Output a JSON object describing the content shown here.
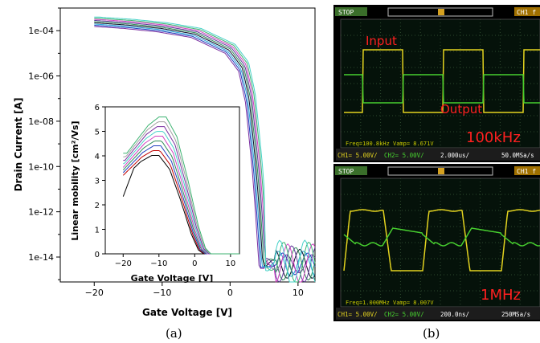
{
  "captions": {
    "a": "(a)",
    "b": "(b)"
  },
  "chart_data": [
    {
      "type": "line",
      "xlabel": "Gate Voltage [V]",
      "ylabel": "Drain Current [A]",
      "log_y": true,
      "xlim": [
        -25,
        12.5
      ],
      "ylim_exponent": [
        -15.1,
        -3
      ],
      "x_ticks": [
        -20,
        -10,
        0,
        10
      ],
      "y_ticks": [
        "1e-04",
        "1e-06",
        "1e-08",
        "1e-10",
        "1e-12",
        "1e-14"
      ],
      "y_tick_exponents": [
        -4,
        -6,
        -8,
        -10,
        -12,
        -14
      ],
      "series_colors": [
        "#7a2fa0",
        "#1f3fbf",
        "#2aa8d8",
        "#0d0d2b",
        "#2e8b57",
        "#5e3a9a",
        "#d040c0",
        "#3cb371",
        "#46d2c8"
      ],
      "representative_curve": {
        "x": [
          -20,
          -15,
          -10,
          -5,
          0,
          2,
          3,
          4,
          4.5,
          5,
          12.5
        ],
        "y_log10": [
          -3.6,
          -3.7,
          -3.85,
          -4.1,
          -4.8,
          -5.6,
          -7,
          -10,
          -12,
          -14.3,
          -14.3
        ]
      }
    },
    {
      "type": "line",
      "inset": true,
      "xlabel": "Gate Voltage [V]",
      "ylabel": "Linear mobility [cm²/Vs]",
      "xlim": [
        -25,
        12.5
      ],
      "ylim": [
        0,
        6
      ],
      "x_ticks": [
        -20,
        -10,
        0,
        10
      ],
      "y_ticks": [
        0,
        1,
        2,
        3,
        4,
        5,
        6
      ],
      "series_colors": [
        "#000000",
        "#c00000",
        "#1f3fbf",
        "#2e8b57",
        "#d040c0",
        "#46d2c8",
        "#7a2fa0",
        "#a0a0a0",
        "#3cb371"
      ],
      "representative_curve": {
        "x": [
          -20,
          -17,
          -14,
          -11,
          -9,
          -6,
          -3,
          0,
          2,
          3.5,
          12.5
        ],
        "y": [
          3.6,
          4.1,
          4.6,
          4.9,
          4.9,
          4.2,
          2.7,
          1.0,
          0.2,
          0,
          0
        ]
      }
    }
  ],
  "oscilloscope": [
    {
      "status": "STOP",
      "channel": "CH1 f",
      "label_input": "Input",
      "label_output": "Output",
      "frequency_label": "100kHz",
      "readout": "Freq=100.8kHz     Vamp= 8.671V",
      "bottom_bar": [
        "CH1= 5.00V/",
        "CH2= 5.00V/",
        "2.000us/",
        "50.0MSa/s"
      ]
    },
    {
      "status": "STOP",
      "channel": "CH1 f",
      "frequency_label": "1MHz",
      "readout": "Freq=1.000MHz     Vamp= 8.007V",
      "bottom_bar": [
        "CH1= 5.00V/",
        "CH2= 5.00V/",
        "200.0ns/",
        "250MSa/s"
      ]
    }
  ]
}
